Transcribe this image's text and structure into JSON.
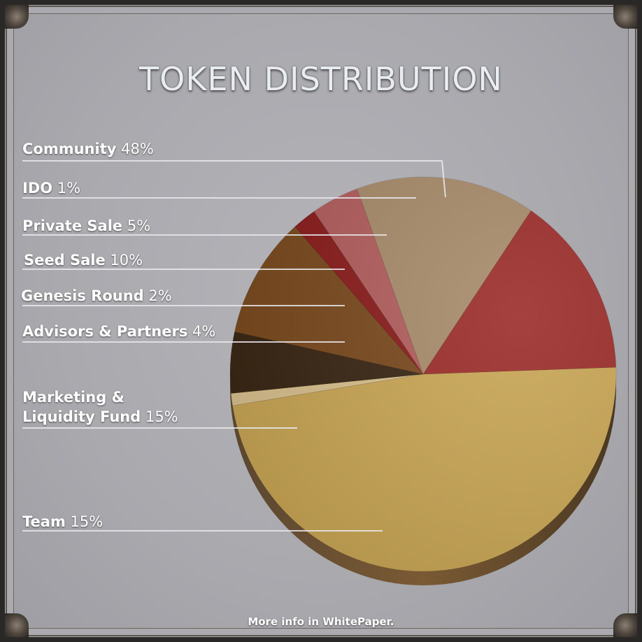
{
  "chart_data": {
    "type": "pie",
    "title": "TOKEN DISTRIBUTION",
    "categories": [
      "Community",
      "IDO",
      "Private Sale",
      "Seed Sale",
      "Genesis Round",
      "Advisors & Partners",
      "Marketing & Liquidity Fund",
      "Team"
    ],
    "values": [
      48,
      1,
      5,
      10,
      2,
      4,
      15,
      15
    ],
    "value_labels": [
      "48%",
      "1%",
      "5%",
      "10%",
      "2%",
      "4%",
      "15%",
      "15%"
    ],
    "colors": [
      "#c9a655",
      "#d8c08e",
      "#3a2614",
      "#7a4a1e",
      "#8a1c1c",
      "#b25d5d",
      "#a88b6a",
      "#9b2d2a"
    ],
    "legend": "left"
  },
  "labels": {
    "community": {
      "name": "Community",
      "pct": "48%"
    },
    "ido": {
      "name": "IDO",
      "pct": "1%"
    },
    "private_sale": {
      "name": "Private Sale",
      "pct": "5%"
    },
    "seed_sale": {
      "name": "Seed Sale",
      "pct": "10%"
    },
    "genesis_round": {
      "name": "Genesis Round",
      "pct": "2%"
    },
    "advisors": {
      "name": "Advisors & Partners",
      "pct": "4%"
    },
    "marketing_line1": "Marketing &",
    "marketing_line2": "Liquidity Fund",
    "marketing_pct": "15%",
    "team": {
      "name": "Team",
      "pct": "15%"
    }
  },
  "footer": "More info in WhitePaper."
}
